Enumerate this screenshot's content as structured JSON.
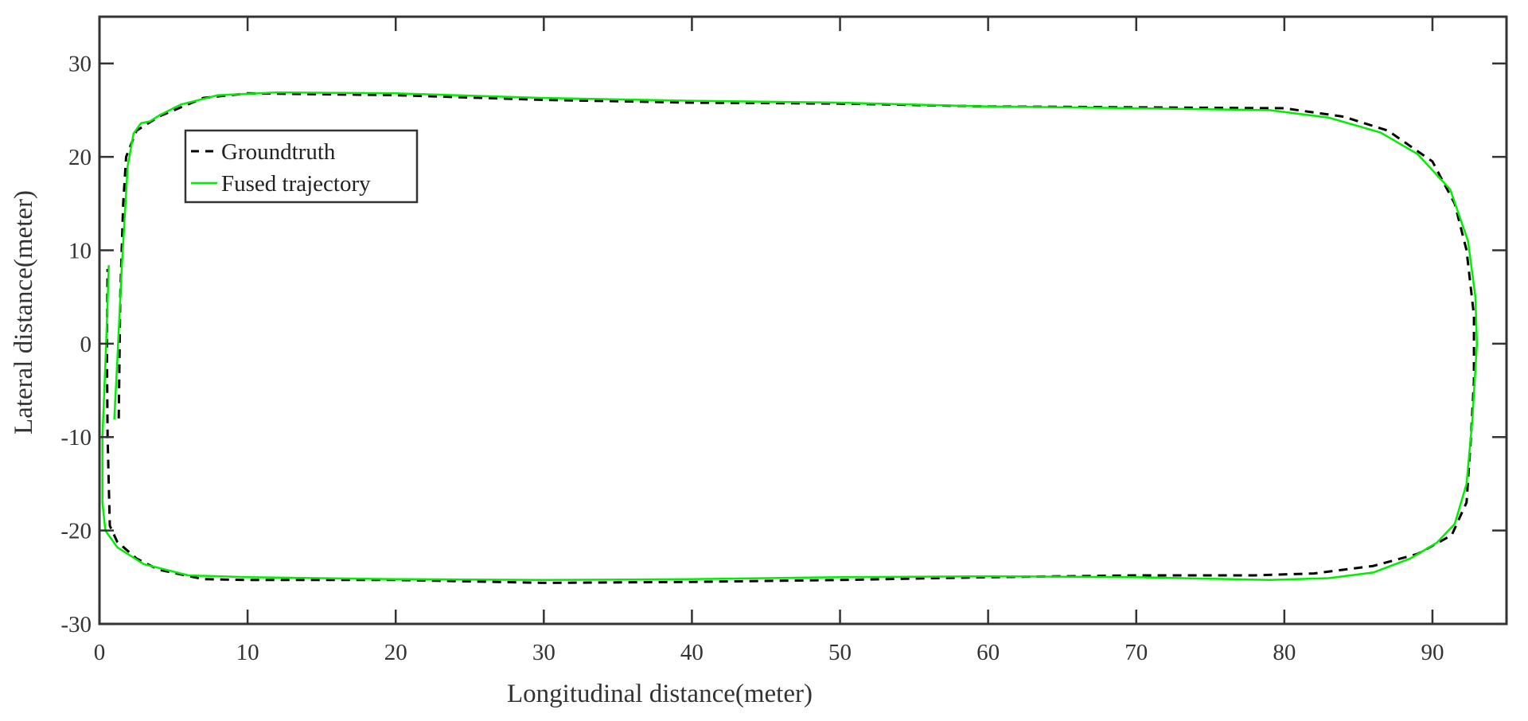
{
  "chart_data": {
    "type": "line",
    "title": "",
    "xlabel": "Longitudinal distance(meter)",
    "ylabel": "Lateral distance(meter)",
    "xlim": [
      0,
      95
    ],
    "ylim": [
      -30,
      35
    ],
    "xticks": [
      0,
      10,
      20,
      30,
      40,
      50,
      60,
      70,
      80,
      90
    ],
    "yticks": [
      -30,
      -20,
      -10,
      0,
      10,
      20,
      30
    ],
    "grid": false,
    "legend_position": "top-left",
    "series": [
      {
        "name": "Groundtruth",
        "style": "dashed",
        "color": "#000000",
        "points": [
          [
            1.3,
            -8
          ],
          [
            1.4,
            5
          ],
          [
            1.6,
            15
          ],
          [
            1.8,
            20
          ],
          [
            2.5,
            22.8
          ],
          [
            4,
            24.3
          ],
          [
            7,
            26.3
          ],
          [
            10,
            26.8
          ],
          [
            20,
            26.6
          ],
          [
            30,
            26.1
          ],
          [
            40,
            25.8
          ],
          [
            50,
            25.7
          ],
          [
            60,
            25.4
          ],
          [
            70,
            25.3
          ],
          [
            80,
            25.2
          ],
          [
            84,
            24.3
          ],
          [
            87,
            22.8
          ],
          [
            90,
            19.5
          ],
          [
            91.5,
            15
          ],
          [
            92.3,
            10
          ],
          [
            92.8,
            3
          ],
          [
            92.8,
            -4
          ],
          [
            92.6,
            -10
          ],
          [
            92.3,
            -17
          ],
          [
            91.3,
            -20.5
          ],
          [
            89,
            -22.5
          ],
          [
            86,
            -23.8
          ],
          [
            82,
            -24.6
          ],
          [
            78,
            -24.8
          ],
          [
            70,
            -24.8
          ],
          [
            60,
            -25
          ],
          [
            50,
            -25.3
          ],
          [
            40,
            -25.5
          ],
          [
            30,
            -25.6
          ],
          [
            20,
            -25.3
          ],
          [
            10,
            -25.3
          ],
          [
            7,
            -25.2
          ],
          [
            4,
            -24.2
          ],
          [
            2.5,
            -23
          ],
          [
            1.2,
            -21.2
          ],
          [
            0.7,
            -19.5
          ],
          [
            0.55,
            -10
          ],
          [
            0.5,
            0
          ],
          [
            0.55,
            8
          ]
        ]
      },
      {
        "name": "Fused trajectory",
        "style": "solid",
        "color": "#00ee00",
        "points": [
          [
            0.63,
            8.4
          ],
          [
            0.45,
            0
          ],
          [
            0.2,
            -10
          ],
          [
            0.2,
            -17
          ],
          [
            0.4,
            -20
          ],
          [
            1.2,
            -21.8
          ],
          [
            3,
            -23.6
          ],
          [
            6,
            -24.8
          ],
          [
            10,
            -25
          ],
          [
            20,
            -25.2
          ],
          [
            30,
            -25.3
          ],
          [
            40,
            -25.2
          ],
          [
            50,
            -25
          ],
          [
            60,
            -24.9
          ],
          [
            70,
            -25
          ],
          [
            79,
            -25.3
          ],
          [
            83,
            -25.1
          ],
          [
            86,
            -24.5
          ],
          [
            88.5,
            -23
          ],
          [
            90.3,
            -21.3
          ],
          [
            91.5,
            -19.3
          ],
          [
            92.3,
            -15
          ],
          [
            92.7,
            -8
          ],
          [
            93,
            0
          ],
          [
            92.9,
            5
          ],
          [
            92.4,
            11
          ],
          [
            91.2,
            16.5
          ],
          [
            89,
            20.3
          ],
          [
            86.5,
            22.6
          ],
          [
            83,
            24.2
          ],
          [
            79,
            25
          ],
          [
            70,
            25.2
          ],
          [
            60,
            25.4
          ],
          [
            50,
            25.8
          ],
          [
            40,
            26
          ],
          [
            30,
            26.3
          ],
          [
            20,
            26.8
          ],
          [
            12,
            26.9
          ],
          [
            8,
            26.6
          ],
          [
            5.5,
            25.6
          ],
          [
            4,
            24.4
          ],
          [
            3.4,
            23.8
          ],
          [
            2.8,
            23.6
          ],
          [
            2.3,
            22.5
          ],
          [
            1.9,
            19
          ],
          [
            1.5,
            8
          ],
          [
            1.2,
            -2
          ],
          [
            1.0,
            -8.1
          ]
        ]
      }
    ]
  }
}
